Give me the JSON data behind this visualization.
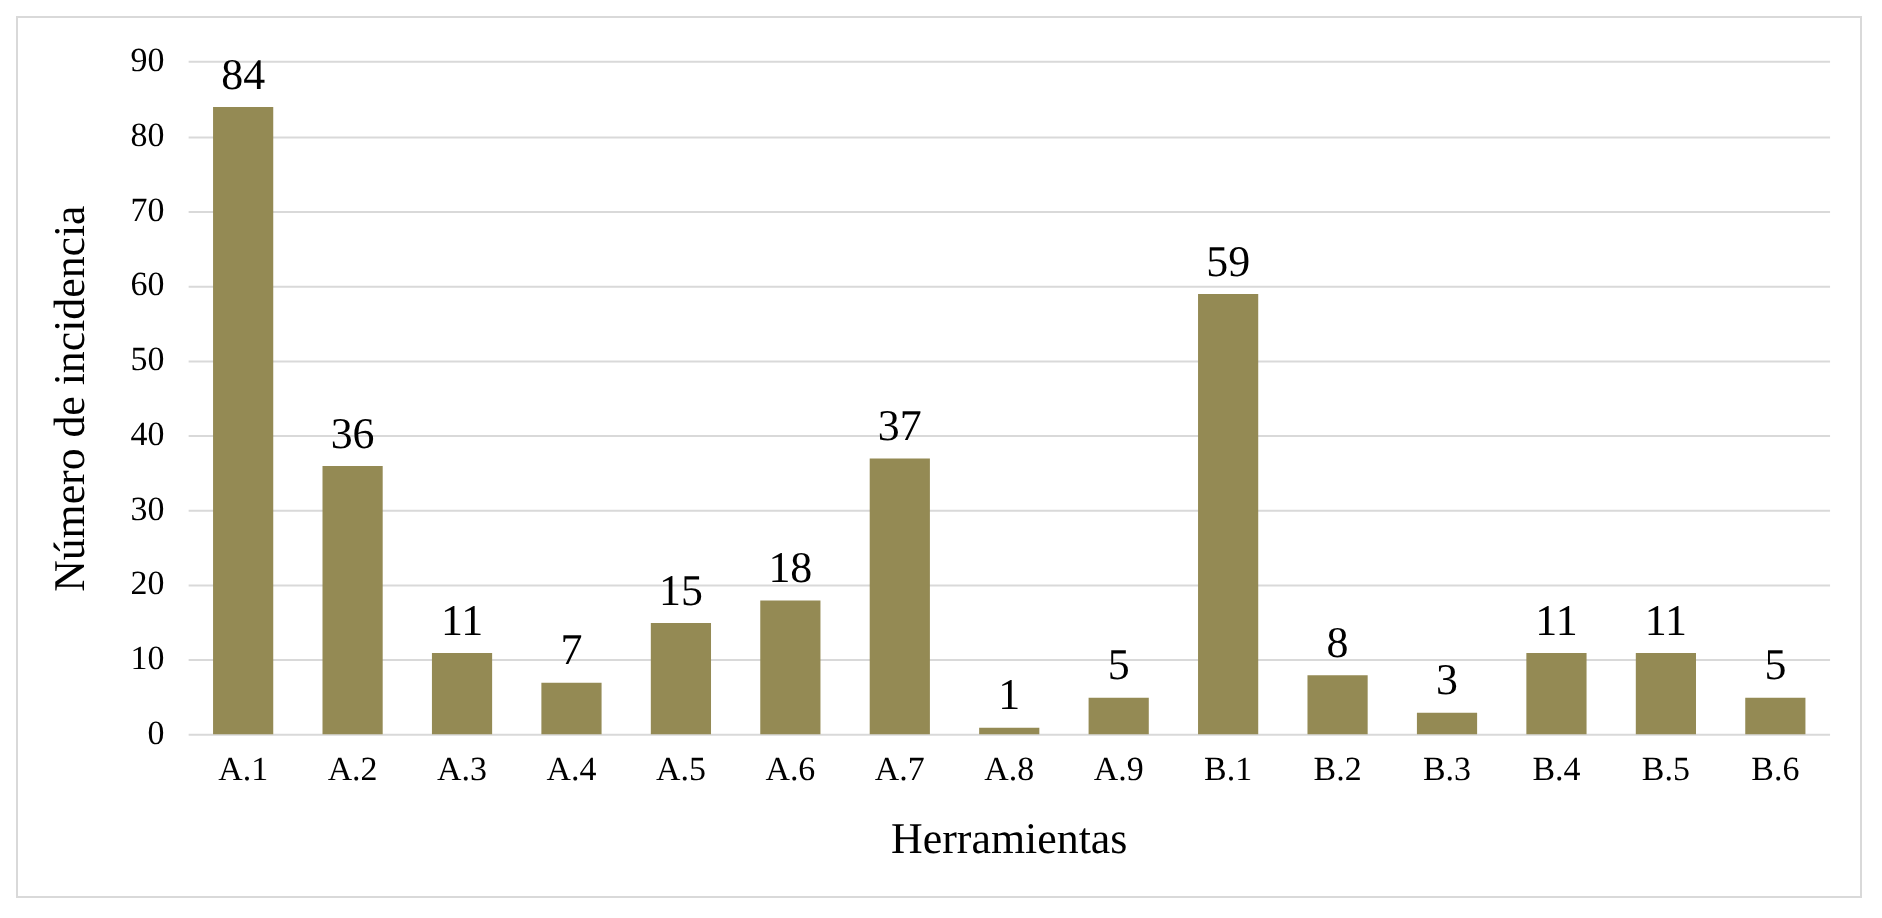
{
  "chart_data": {
    "type": "bar",
    "xlabel": "Herramientas",
    "ylabel": "Número de incidencia",
    "categories": [
      "A.1",
      "A.2",
      "A.3",
      "A.4",
      "A.5",
      "A.6",
      "A.7",
      "A.8",
      "A.9",
      "B.1",
      "B.2",
      "B.3",
      "B.4",
      "B.5",
      "B.6"
    ],
    "values": [
      84,
      36,
      11,
      7,
      15,
      18,
      37,
      1,
      5,
      59,
      8,
      3,
      11,
      11,
      5
    ],
    "color": "#948a54",
    "ylim": [
      0,
      90
    ],
    "yticks": [
      0,
      10,
      20,
      30,
      40,
      50,
      60,
      70,
      80,
      90
    ],
    "grid": "y",
    "data_labels": true,
    "legend": false
  }
}
